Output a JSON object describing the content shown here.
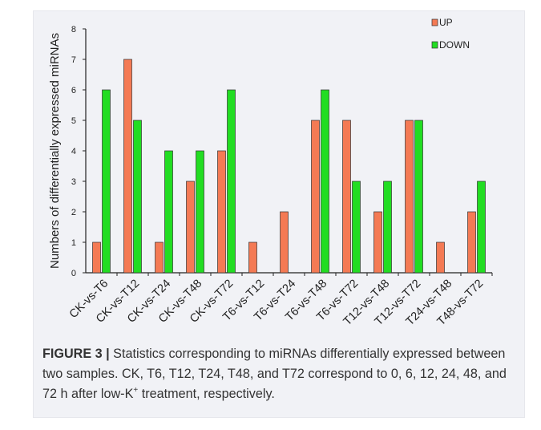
{
  "chart_data": {
    "type": "bar",
    "categories": [
      "CK-vs-T6",
      "CK-vs-T12",
      "CK-vs-T24",
      "CK-vs-T48",
      "CK-vs-T72",
      "T6-vs-T12",
      "T6-vs-T24",
      "T6-vs-T48",
      "T6-vs-T72",
      "T12-vs-T48",
      "T12-vs-T72",
      "T24-vs-T48",
      "T48-vs-T72"
    ],
    "series": [
      {
        "name": "UP",
        "values": [
          1,
          7,
          1,
          3,
          4,
          1,
          2,
          5,
          5,
          2,
          5,
          1,
          2
        ],
        "color": "#f47a54"
      },
      {
        "name": "DOWN",
        "values": [
          6,
          5,
          4,
          4,
          6,
          0,
          0,
          6,
          3,
          3,
          5,
          0,
          3
        ],
        "color": "#22dd22"
      }
    ],
    "ylabel": "Numbers of differentially expressed miRNAs",
    "xlabel": "",
    "ylim": [
      0,
      8
    ],
    "yticks": [
      0,
      1,
      2,
      3,
      4,
      5,
      6,
      7,
      8
    ],
    "legend_position": "top-right",
    "grid": false
  },
  "caption": {
    "label": "FIGURE 3 |",
    "text_before_sup": " Statistics corresponding to miRNAs differentially expressed between two samples. CK, T6, T12, T24, T48, and T72 correspond to 0, 6, 12, 24, 48, and 72 h after low-K",
    "superscript": "+",
    "text_after_sup": " treatment, respectively."
  }
}
